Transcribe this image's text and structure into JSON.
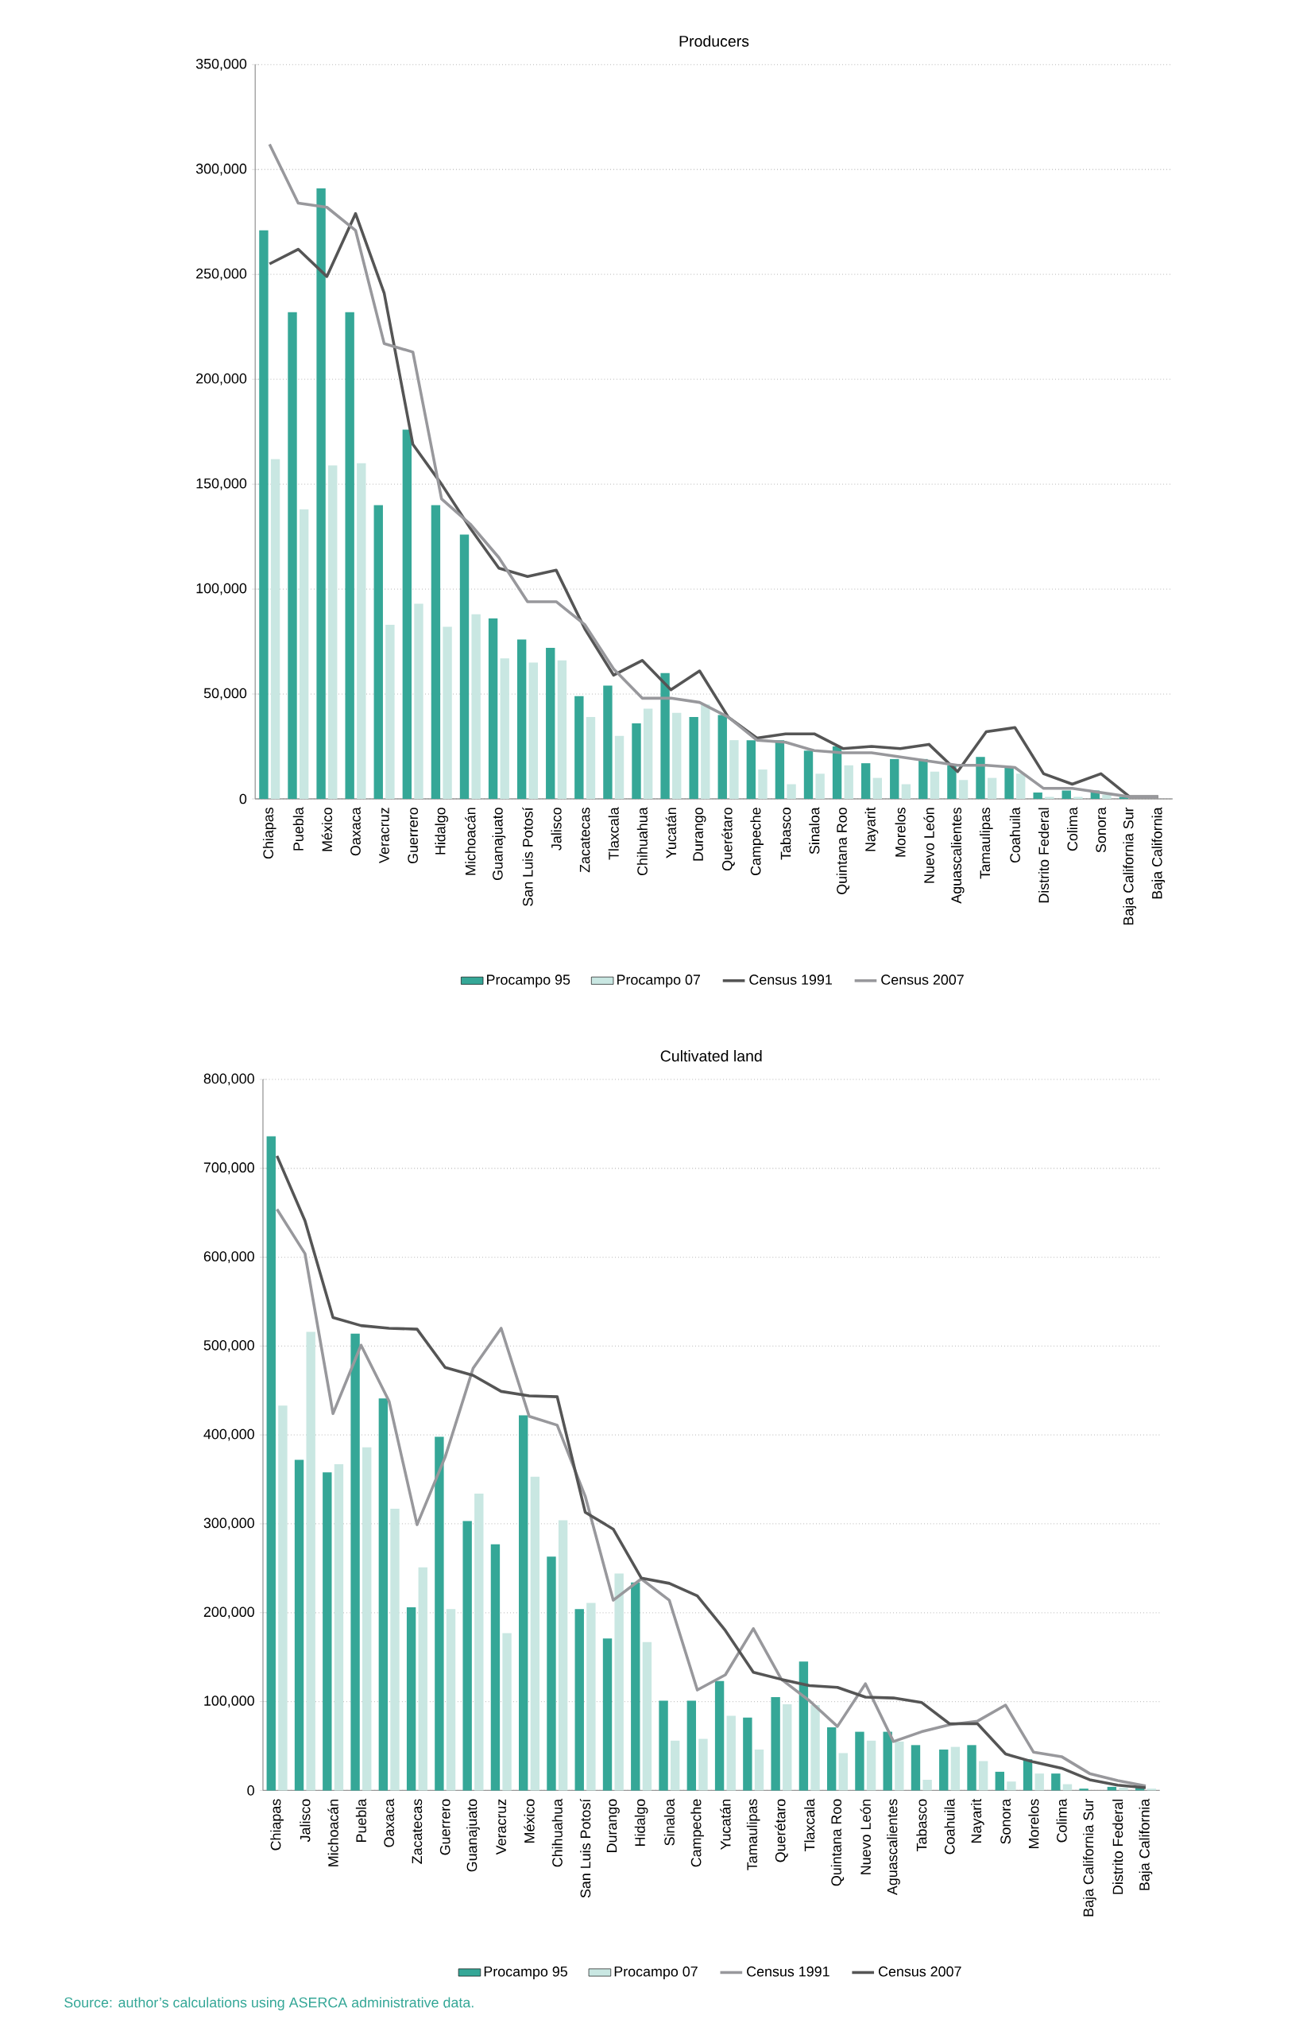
{
  "chart_data": [
    {
      "type": "bar",
      "title": "Producers",
      "categories": [
        "Chiapas",
        "Puebla",
        "México",
        "Oaxaca",
        "Veracruz",
        "Guerrero",
        "Hidalgo",
        "Michoacán",
        "Guanajuato",
        "San Luis Potosí",
        "Jalisco",
        "Zacatecas",
        "Tlaxcala",
        "Chihuahua",
        "Yucatán",
        "Durango",
        "Querétaro",
        "Campeche",
        "Tabasco",
        "Sinaloa",
        "Quintana Roo",
        "Nayarit",
        "Morelos",
        "Nuevo León",
        "Aguascalientes",
        "Tamaulipas",
        "Coahuila",
        "Distrito Federal",
        "Colima",
        "Sonora",
        "Baja California Sur",
        "Baja California"
      ],
      "series": [
        {
          "name": "Procampo 95",
          "color": "#35a797",
          "values": [
            271000,
            232000,
            291000,
            232000,
            140000,
            176000,
            140000,
            126000,
            86000,
            76000,
            72000,
            49000,
            54000,
            36000,
            60000,
            39000,
            40000,
            28000,
            28000,
            23000,
            25000,
            17000,
            19000,
            19000,
            16000,
            20000,
            15000,
            3000,
            4000,
            4000,
            1000,
            null
          ]
        },
        {
          "name": "Procampo 07",
          "color": "#c9e7e2",
          "values": [
            162000,
            138000,
            159000,
            160000,
            83000,
            93000,
            82000,
            88000,
            67000,
            65000,
            66000,
            39000,
            30000,
            43000,
            41000,
            45000,
            28000,
            14000,
            7000,
            12000,
            16000,
            10000,
            7000,
            13000,
            9000,
            10000,
            12000,
            1000,
            1000,
            2000,
            null,
            null
          ]
        },
        {
          "name": "Census 1991",
          "type": "line",
          "color": "#555555",
          "values": [
            255000,
            262000,
            249000,
            279000,
            241000,
            169000,
            150000,
            129000,
            110000,
            106000,
            109000,
            81000,
            59000,
            66000,
            52000,
            61000,
            39000,
            29000,
            31000,
            31000,
            24000,
            25000,
            24000,
            26000,
            13000,
            32000,
            34000,
            12000,
            7000,
            12000,
            1000,
            1000
          ]
        },
        {
          "name": "Census 2007",
          "type": "line",
          "color": "#98989c",
          "values": [
            312000,
            284000,
            282000,
            271000,
            217000,
            213000,
            143000,
            131000,
            115000,
            94000,
            94000,
            83000,
            62000,
            48000,
            48000,
            46000,
            39000,
            28000,
            27000,
            23000,
            22000,
            22000,
            20000,
            18000,
            16000,
            16000,
            15000,
            5000,
            5000,
            3000,
            1000,
            1000
          ]
        }
      ],
      "ylim": [
        0,
        350000
      ],
      "yticks": [
        {
          "value": 0,
          "label": "0"
        },
        {
          "value": 50000,
          "label": "50,000"
        },
        {
          "value": 100000,
          "label": "100,000"
        },
        {
          "value": 150000,
          "label": "150,000"
        },
        {
          "value": 200000,
          "label": "200,000"
        },
        {
          "value": 250000,
          "label": "250,000"
        },
        {
          "value": 300000,
          "label": "300,000"
        },
        {
          "value": 350000,
          "label": "350,000"
        }
      ],
      "grid": "y",
      "legend": "bottom"
    },
    {
      "type": "bar",
      "title": "Cultivated land",
      "categories": [
        "Chiapas",
        "Jalisco",
        "Michoacán",
        "Puebla",
        "Oaxaca",
        "Zacatecas",
        "Guerrero",
        "Guanajuato",
        "Veracruz",
        "México",
        "Chihuahua",
        "San Luis Potosí",
        "Durango",
        "Hidalgo",
        "Sinaloa",
        "Campeche",
        "Yucatán",
        "Tamaulipas",
        "Querétaro",
        "Tlaxcala",
        "Quintana Roo",
        "Nuevo León",
        "Aguascalientes",
        "Tabasco",
        "Coahuila",
        "Nayarit",
        "Sonora",
        "Morelos",
        "Colima",
        "Baja California Sur",
        "Distrito Federal",
        "Baja California"
      ],
      "series": [
        {
          "name": "Procampo 95",
          "color": "#35a797",
          "values": [
            736000,
            372000,
            358000,
            514000,
            441000,
            206000,
            398000,
            303000,
            277000,
            422000,
            263000,
            204000,
            171000,
            234000,
            101000,
            101000,
            123000,
            82000,
            105000,
            145000,
            71000,
            66000,
            66000,
            51000,
            46000,
            51000,
            21000,
            35000,
            19000,
            2000,
            4000,
            3000
          ]
        },
        {
          "name": "Procampo 07",
          "color": "#c9e7e2",
          "values": [
            433000,
            516000,
            367000,
            386000,
            317000,
            251000,
            204000,
            334000,
            177000,
            353000,
            304000,
            211000,
            244000,
            167000,
            56000,
            58000,
            84000,
            46000,
            97000,
            96000,
            42000,
            56000,
            55000,
            12000,
            49000,
            33000,
            10000,
            19000,
            7000,
            null,
            3000,
            2000
          ]
        },
        {
          "name": "Census 1991",
          "type": "line",
          "color": "#98989c",
          "values": [
            654000,
            604000,
            424000,
            501000,
            438000,
            299000,
            375000,
            475000,
            520000,
            421000,
            411000,
            331000,
            214000,
            238000,
            214000,
            113000,
            130000,
            182000,
            125000,
            101000,
            72000,
            120000,
            55000,
            66000,
            74000,
            78000,
            96000,
            43000,
            38000,
            19000,
            11000,
            5000
          ]
        },
        {
          "name": "Census 2007",
          "type": "line",
          "color": "#555555",
          "values": [
            714000,
            641000,
            532000,
            523000,
            520000,
            519000,
            476000,
            467000,
            449000,
            444000,
            443000,
            313000,
            294000,
            239000,
            233000,
            219000,
            180000,
            133000,
            125000,
            118000,
            116000,
            105000,
            104000,
            99000,
            75000,
            75000,
            41000,
            32000,
            25000,
            12000,
            6000,
            3000
          ]
        }
      ],
      "ylim": [
        0,
        800000
      ],
      "yticks": [
        {
          "value": 0,
          "label": "0"
        },
        {
          "value": 100000,
          "label": "100,000"
        },
        {
          "value": 200000,
          "label": "200,000"
        },
        {
          "value": 300000,
          "label": "300,000"
        },
        {
          "value": 400000,
          "label": "400,000"
        },
        {
          "value": 500000,
          "label": "500,000"
        },
        {
          "value": 600000,
          "label": "600,000"
        },
        {
          "value": 700000,
          "label": "700,000"
        },
        {
          "value": 800000,
          "label": "800,000"
        }
      ],
      "grid": "y",
      "legend": "bottom",
      "annotations": [
        "Source: author’s calculations using ASERCA administrative data."
      ]
    }
  ]
}
